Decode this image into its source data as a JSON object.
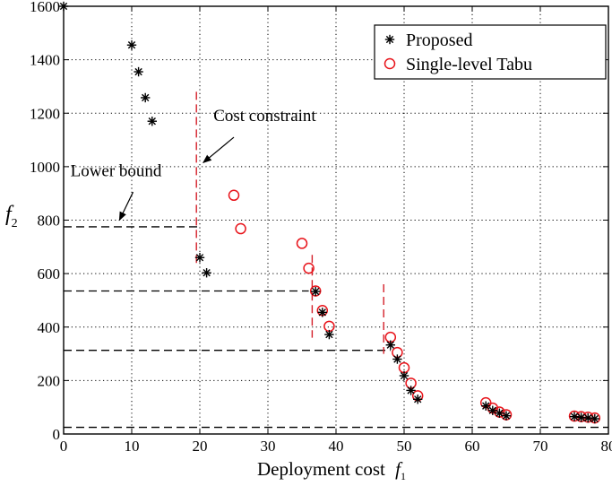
{
  "chart_data": {
    "type": "scatter",
    "xlabel": "Deployment cost",
    "xlabel_symbol": "f",
    "xlabel_sub": "1",
    "ylabel_symbol": "f",
    "ylabel_sub": "2",
    "xlim": [
      0,
      80
    ],
    "ylim": [
      0,
      1600
    ],
    "x_ticks": [
      0,
      10,
      20,
      30,
      40,
      50,
      60,
      70,
      80
    ],
    "y_ticks": [
      0,
      200,
      400,
      600,
      800,
      1000,
      1200,
      1400,
      1600
    ],
    "grid": "dotted",
    "legend": "top-right",
    "series": [
      {
        "name": "Proposed",
        "marker": "asterisk",
        "color": "#000000",
        "points": [
          [
            0,
            1600
          ],
          [
            10,
            1455
          ],
          [
            11,
            1355
          ],
          [
            12,
            1258
          ],
          [
            13,
            1170
          ],
          [
            20,
            660
          ],
          [
            21,
            603
          ],
          [
            37,
            533
          ],
          [
            38,
            455
          ],
          [
            39,
            372
          ],
          [
            48,
            333
          ],
          [
            49,
            280
          ],
          [
            50,
            218
          ],
          [
            51,
            163
          ],
          [
            52,
            130
          ],
          [
            62,
            105
          ],
          [
            63,
            88
          ],
          [
            64,
            78
          ],
          [
            65,
            68
          ],
          [
            75,
            65
          ],
          [
            76,
            62
          ],
          [
            77,
            60
          ],
          [
            78,
            57
          ]
        ]
      },
      {
        "name": "Single-level Tabu",
        "marker": "circle",
        "color": "#e8141b",
        "points": [
          [
            25,
            893
          ],
          [
            26,
            768
          ],
          [
            35,
            713
          ],
          [
            36,
            620
          ],
          [
            37,
            535
          ],
          [
            38,
            462
          ],
          [
            39,
            403
          ],
          [
            48,
            362
          ],
          [
            49,
            305
          ],
          [
            50,
            248
          ],
          [
            51,
            190
          ],
          [
            52,
            143
          ],
          [
            62,
            117
          ],
          [
            63,
            97
          ],
          [
            64,
            82
          ],
          [
            65,
            72
          ],
          [
            75,
            67
          ],
          [
            76,
            65
          ],
          [
            77,
            63
          ],
          [
            78,
            60
          ]
        ]
      }
    ],
    "lower_bounds": [
      {
        "x0": 0,
        "x1": 20,
        "y": 775
      },
      {
        "x0": 0,
        "x1": 36,
        "y": 535
      },
      {
        "x0": 0,
        "x1": 48,
        "y": 313
      },
      {
        "x0": 0,
        "x1": 80,
        "y": 25
      }
    ],
    "cost_constraints": [
      {
        "x": 19.5,
        "y0": 640,
        "y1": 1280
      },
      {
        "x": 36.5,
        "y0": 360,
        "y1": 670
      },
      {
        "x": 47,
        "y0": 300,
        "y1": 560
      }
    ],
    "annotations": [
      {
        "text": "Cost constraint",
        "text_at": [
          22,
          1170
        ],
        "arrow_from": [
          25,
          1110
        ],
        "arrow_to": [
          20.5,
          1015
        ]
      },
      {
        "text": "Lower bound",
        "text_at": [
          1,
          965
        ],
        "arrow_from": [
          10.2,
          905
        ],
        "arrow_to": [
          8.2,
          800
        ]
      }
    ]
  }
}
